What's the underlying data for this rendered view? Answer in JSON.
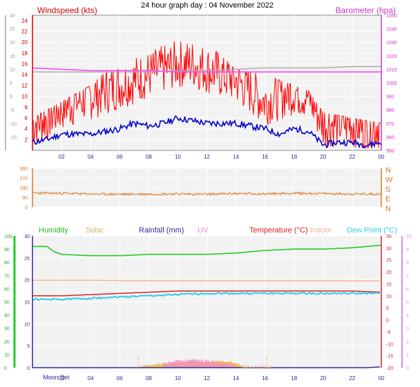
{
  "title": "24 hour graph day : 04 November 2022",
  "chart_data": [
    {
      "type": "line",
      "id": "wind-baro",
      "title": "24 hour graph day : 04 November 2022",
      "legend_left": "Windspeed (kts)",
      "legend_right": "Barometer (hpa)",
      "x_ticks": [
        "02",
        "04",
        "06",
        "08",
        "10",
        "12",
        "14",
        "16",
        "18",
        "20",
        "22",
        "00"
      ],
      "y_left_ticks": [
        "2",
        "4",
        "6",
        "8",
        "10",
        "12",
        "14",
        "16",
        "18",
        "20",
        "22",
        "24"
      ],
      "y_left_range": [
        0,
        25
      ],
      "y_outer_ticks": [
        "-15",
        "-10",
        "-5",
        "0",
        "5",
        "10",
        "15",
        "20",
        "25",
        "30"
      ],
      "y_outer_range": [
        -20,
        30
      ],
      "y_right_ticks": [
        "950",
        "960",
        "970",
        "980",
        "990",
        "1000",
        "1010",
        "1020",
        "1030",
        "1040",
        "1050"
      ],
      "y_right_range": [
        950,
        1050
      ],
      "x_range_hours": [
        0,
        24
      ],
      "series": [
        {
          "name": "Windspeed (kts)",
          "color": "#ff0000",
          "x": [
            0,
            1,
            2,
            3,
            4,
            5,
            6,
            7,
            8,
            9,
            10,
            11,
            12,
            13,
            14,
            15,
            16,
            17,
            18,
            19,
            20,
            21,
            22,
            23,
            24
          ],
          "values": [
            5,
            6,
            8,
            9,
            10,
            11,
            12,
            13,
            14,
            15,
            16,
            16,
            15,
            14,
            13,
            11,
            9,
            10,
            11,
            10,
            5,
            5,
            5,
            4,
            5
          ]
        },
        {
          "name": "Wind gust",
          "color": "#ff0000",
          "x": [
            0,
            2,
            4,
            6,
            8,
            9.5,
            12,
            14,
            16,
            18,
            19,
            20,
            22,
            24
          ],
          "values": [
            6,
            9,
            12,
            17,
            19,
            23,
            20,
            15,
            14,
            12,
            11,
            7,
            6,
            5
          ]
        },
        {
          "name": "Wind average",
          "color": "#0000cc",
          "x": [
            0,
            1,
            2,
            3,
            4,
            5,
            6,
            7,
            8,
            9,
            10,
            11,
            12,
            13,
            14,
            15,
            16,
            17,
            18,
            19,
            20,
            21,
            22,
            23,
            24
          ],
          "values": [
            1.5,
            2,
            3,
            3,
            3,
            3.5,
            4,
            5,
            4.5,
            5,
            6,
            5.5,
            5,
            5,
            5,
            4.5,
            4,
            3,
            4,
            3.5,
            1,
            1.5,
            1.5,
            1,
            1.5
          ]
        },
        {
          "name": "Barometer (hpa)",
          "color": "#ff44ff",
          "x": [
            0,
            2,
            4,
            6,
            8,
            10,
            12,
            14,
            16,
            18,
            20,
            22,
            24
          ],
          "values": [
            1011,
            1010,
            1009,
            1009,
            1009,
            1008,
            1008,
            1008,
            1008,
            1008,
            1008,
            1008,
            1008
          ]
        },
        {
          "name": "Barometer (grey)",
          "color": "#aaaaaa",
          "x": [
            0,
            2,
            4,
            6,
            8,
            10,
            12,
            14,
            16,
            18,
            20,
            22,
            24
          ],
          "values": [
            1008,
            1008,
            1008,
            1008,
            1008,
            1009,
            1009,
            1010,
            1011,
            1011,
            1011,
            1012,
            1012
          ]
        }
      ]
    },
    {
      "type": "line",
      "id": "direction",
      "y_left_ticks": [
        "0",
        "90",
        "180",
        "270",
        "360"
      ],
      "y_left_range": [
        0,
        360
      ],
      "compass_labels": [
        "N",
        "W",
        "S",
        "E",
        "N"
      ],
      "series": [
        {
          "name": "Wind direction",
          "color": "#dd7722",
          "x": [
            0,
            2,
            4,
            6,
            8,
            10,
            12,
            14,
            16,
            18,
            20,
            22,
            24
          ],
          "values": [
            130,
            128,
            120,
            118,
            120,
            122,
            118,
            125,
            122,
            128,
            125,
            120,
            122
          ]
        }
      ]
    },
    {
      "type": "line",
      "id": "temp-hum",
      "legend": [
        {
          "label": "Humidity",
          "color": "#22bb22"
        },
        {
          "label": "Solar",
          "color": "#d4b25a"
        },
        {
          "label": "Rainfall (mm)",
          "color": "#2a2a99"
        },
        {
          "label": "UV",
          "color": "#ee88cc"
        },
        {
          "label": "Temperature (°C)",
          "color": "#dd2222"
        },
        {
          "label": "Indoor",
          "color": "#f4b090"
        },
        {
          "label": "Dew Point (°C)",
          "color": "#33ccee"
        }
      ],
      "x_ticks": [
        "02",
        "04",
        "06",
        "08",
        "10",
        "12",
        "14",
        "16",
        "18",
        "20",
        "22",
        "00"
      ],
      "moon_set_label": "Moon Set",
      "moon_rise_label": "Moon Rise",
      "y_hum_ticks": [
        "0",
        "10",
        "20",
        "30",
        "40",
        "50",
        "60",
        "70",
        "80",
        "90",
        "100"
      ],
      "y_hum_range": [
        0,
        100
      ],
      "y_rain_ticks": [
        "0",
        "5",
        "10",
        "15",
        "20",
        "25",
        "30"
      ],
      "y_rain_range": [
        0,
        30
      ],
      "y_temp_ticks": [
        "-20",
        "-15",
        "-10",
        "-5",
        "0",
        "5",
        "10",
        "15",
        "20",
        "25",
        "30",
        "35"
      ],
      "y_temp_range": [
        -20,
        35
      ],
      "y_uv_ticks": [
        "0",
        "1",
        "2",
        "3",
        "4",
        "5",
        "6",
        "7",
        "8",
        "9",
        "10"
      ],
      "y_uv_range": [
        0,
        10
      ],
      "series": [
        {
          "name": "Humidity",
          "color": "#22cc22",
          "scale": "hum",
          "x": [
            0,
            1,
            1.5,
            2,
            4,
            6,
            8,
            10,
            12,
            14,
            16,
            18,
            20,
            22,
            23,
            24
          ],
          "values": [
            92,
            92,
            88,
            86,
            85,
            85,
            86,
            86,
            86,
            87,
            89,
            90,
            90,
            91,
            92,
            93
          ]
        },
        {
          "name": "Indoor",
          "color": "#f4b090",
          "scale": "temp",
          "x": [
            0,
            4,
            8,
            12,
            16,
            20,
            24
          ],
          "values": [
            16.5,
            16.5,
            16.3,
            16.3,
            16.3,
            16.3,
            16.2
          ]
        },
        {
          "name": "Temperature (°C)",
          "color": "#dd2222",
          "scale": "temp",
          "x": [
            0,
            2,
            4,
            6,
            8,
            10,
            12,
            14,
            16,
            18,
            20,
            22,
            24
          ],
          "values": [
            10,
            10,
            10.5,
            11,
            11.5,
            12,
            12,
            12,
            12,
            12,
            12,
            12,
            11.5
          ]
        },
        {
          "name": "Dew Point (°C)",
          "color": "#33ccee",
          "scale": "temp",
          "x": [
            0,
            2,
            4,
            6,
            8,
            10,
            12,
            14,
            16,
            18,
            20,
            22,
            24
          ],
          "values": [
            8.5,
            8.5,
            9,
            9.5,
            10,
            10.5,
            11,
            11,
            11,
            11,
            11,
            11,
            11
          ]
        },
        {
          "name": "Solar",
          "color": "#f0b030",
          "scale": "hum",
          "x": [
            7,
            7.5,
            8,
            9,
            10,
            11,
            12,
            13,
            14,
            14.5,
            15
          ],
          "values": [
            0,
            1,
            2,
            3,
            4,
            5,
            4,
            5,
            4,
            1,
            0
          ]
        },
        {
          "name": "UV",
          "color": "#ee88cc",
          "scale": "uv",
          "x": [
            9,
            10,
            11,
            12,
            13,
            14
          ],
          "values": [
            0.3,
            0.5,
            0.6,
            0.5,
            0.4,
            0.2
          ]
        },
        {
          "name": "Rainfall (mm)",
          "color": "#2a2a99",
          "scale": "rain",
          "x": [
            0,
            23,
            24
          ],
          "values": [
            0,
            0,
            0.2
          ]
        }
      ]
    }
  ]
}
